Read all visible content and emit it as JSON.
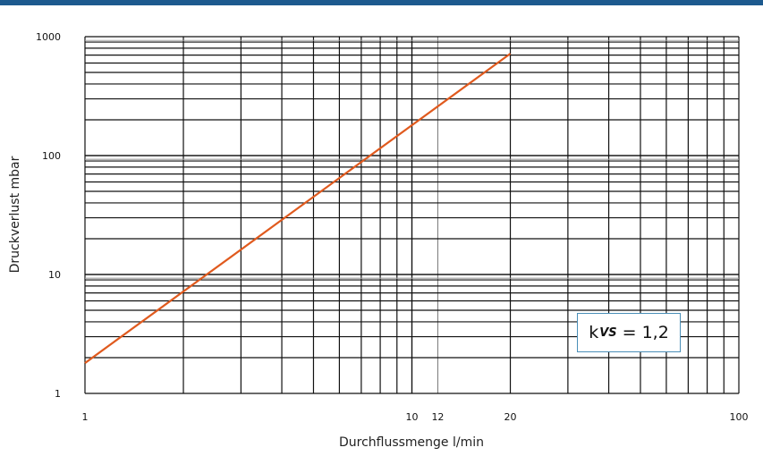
{
  "chart_data": {
    "type": "line",
    "x_scale": "log",
    "y_scale": "log",
    "xlim": [
      1,
      100
    ],
    "ylim": [
      1,
      1000
    ],
    "xlabel": "Durchflussmenge l/min",
    "ylabel": "Druckverlust mbar",
    "x_ticks": [
      1,
      10,
      12,
      20,
      100
    ],
    "x_tick_labels": [
      "1",
      "10",
      "12",
      "20",
      "100"
    ],
    "y_ticks": [
      1,
      10,
      100,
      1000
    ],
    "y_tick_labels": [
      "1",
      "10",
      "100",
      "1000"
    ],
    "grid": true,
    "series": [
      {
        "color": "#e05a1e",
        "x": [
          1,
          20
        ],
        "y": [
          1.8,
          720
        ]
      }
    ],
    "annotation": {
      "prefix": "k",
      "subscript": "VS",
      "equals": "=",
      "value": "1,2"
    }
  },
  "colors": {
    "accent_bar": "#1d5a8e",
    "line": "#e05a1e",
    "grid": "#111111",
    "box_border": "#4a8fb8"
  }
}
